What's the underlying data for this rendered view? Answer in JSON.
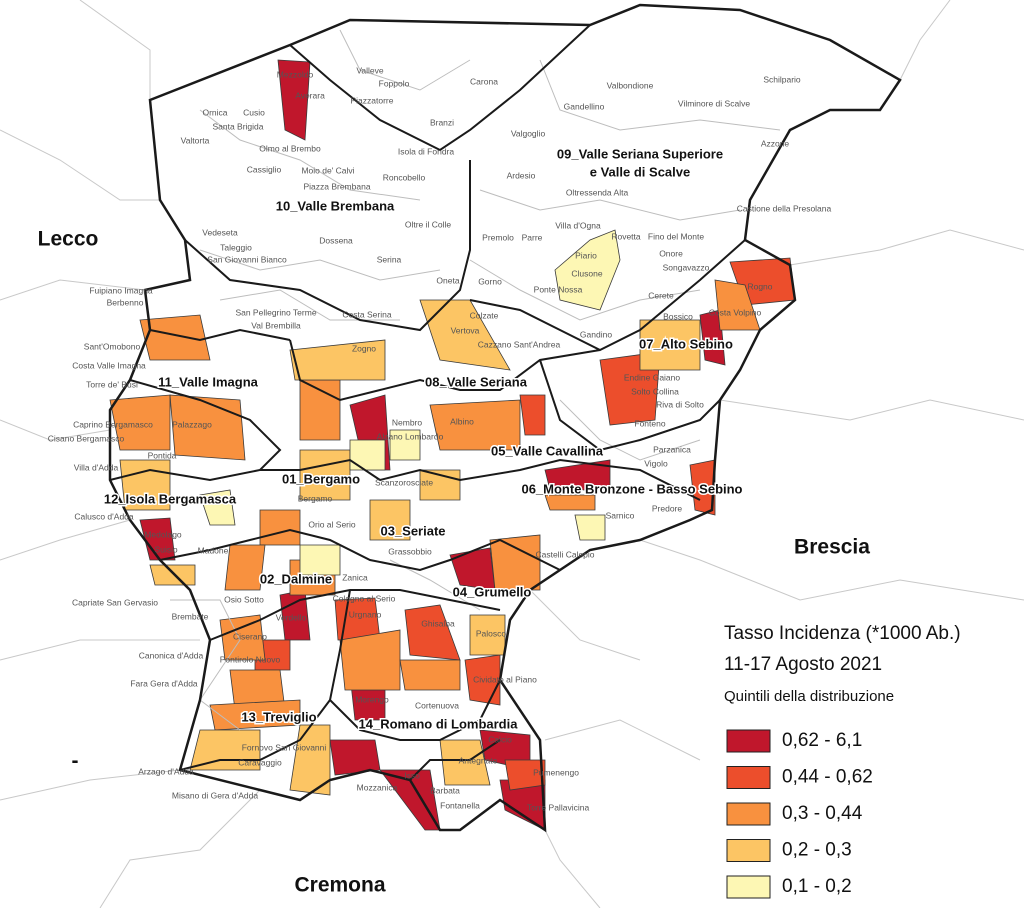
{
  "regions": [
    "Lecco",
    "Brescia",
    "Cremona",
    "-"
  ],
  "districts": [
    "10_Valle Brembana",
    "09_Valle Seriana Superiore",
    "e Valle di Scalve",
    "07_Alto Sebino",
    "11_Valle Imagna",
    "08_Valle Seriana",
    "05_Valle Cavallina",
    "01_Bergamo",
    "06_Monte Bronzone - Basso Sebino",
    "12_Isola Bergamasca",
    "03_Seriate",
    "02_Dalmine",
    "04_Grumello",
    "13_Treviglio",
    "14_Romano di Lombardia"
  ],
  "municipalities": [
    "Foppolo",
    "Valleve",
    "Mezzoldo",
    "Carona",
    "Valbondione",
    "Schilpario",
    "Averara",
    "Piazzatorre",
    "Gandellino",
    "Vilminore di Scalve",
    "Ornica",
    "Cusio",
    "Santa Brigida",
    "Branzi",
    "Valgoglio",
    "Azzone",
    "Valtorta",
    "Olmo al Brembo",
    "Isola di Fondra",
    "Cassiglio",
    "Moio de' Calvi",
    "Piazza Brembana",
    "Roncobello",
    "Ardesio",
    "Oltressenda Alta",
    "Castione della Presolana",
    "Oltre il Colle",
    "Vedeseta",
    "Taleggio",
    "Dossena",
    "Premolo",
    "Parre",
    "Villa d'Ogna",
    "Rovetta",
    "Fino del Monte",
    "San Giovanni Bianco",
    "Serina",
    "Onore",
    "Songavazzo",
    "Piario",
    "Clusone",
    "Oneta",
    "Gorno",
    "Cerete",
    "Rogno",
    "Fuipiano Imagna",
    "Berbenno",
    "San Pellegrino Terme",
    "Val Brembilla",
    "Costa Serina",
    "Ponte Nossa",
    "Costa Volpino",
    "Bossico",
    "Gandino",
    "Cazzano Sant'Andrea",
    "Vertova",
    "Colzate",
    "Sant'Omobono",
    "Costa Valle Imagna",
    "Torre de' Busi",
    "Zogno",
    "Caprino Bergamasco",
    "Cisano Bergamasco",
    "Villa d'Adda",
    "Calusco d'Adda",
    "Nembro",
    "Albino",
    "Alzano Lombardo",
    "Endine Gaiano",
    "Solto Collina",
    "Riva di Solto",
    "Fonteno",
    "Parzanica",
    "Vigolo",
    "Predore",
    "Sarnico",
    "Pontida",
    "Palazzago",
    "Bergamo",
    "Orio al Serio",
    "Grassobbio",
    "Zanica",
    "Suisio",
    "Medolago",
    "Madone",
    "Capriate San Gervasio",
    "Brembate",
    "Osio Sotto",
    "Verdello",
    "Urgnano",
    "Cologno al Serio",
    "Ghisalba",
    "Palosco",
    "Cividate al Piano",
    "Castelli Calepio",
    "Canonica d'Adda",
    "Fara Gera d'Adda",
    "Pontirolo Nuovo",
    "Ciserano",
    "Morengo",
    "Cortenuova",
    "Calcio",
    "Pumenengo",
    "Arzago d'Adda",
    "Fornovo San Giovanni",
    "Caravaggio",
    "Misano di Gera d'Adda",
    "Isso",
    "Barbata",
    "Fontanella",
    "Torre Pallavicina",
    "Antegnate",
    "Mozzanica",
    "Scanzorosciate"
  ],
  "legend": {
    "title": "Tasso Incidenza (*1000 Ab.)",
    "period": "11-17 Agosto 2021",
    "subtitle": "Quintili della distribuzione",
    "classes": [
      {
        "label": "0,62 - 6,1",
        "color": "#c0172c"
      },
      {
        "label": "0,44 - 0,62",
        "color": "#ec4e2c"
      },
      {
        "label": "0,3 - 0,44",
        "color": "#f8913f"
      },
      {
        "label": "0,2 - 0,3",
        "color": "#fcc564"
      },
      {
        "label": "0,1 - 0,2",
        "color": "#fdf7b4"
      }
    ]
  }
}
